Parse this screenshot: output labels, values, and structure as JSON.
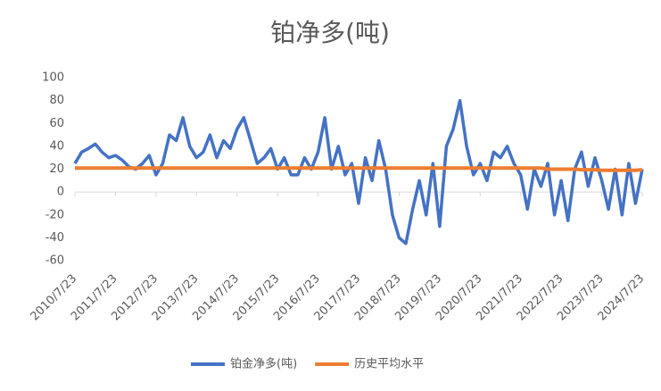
{
  "chart_data": {
    "type": "line",
    "title": "铂净多(吨)",
    "categories": [
      "2010/7/23",
      null,
      null,
      null,
      null,
      null,
      "2011/7/23",
      null,
      null,
      null,
      null,
      null,
      "2012/7/23",
      null,
      null,
      null,
      null,
      null,
      "2013/7/23",
      null,
      null,
      null,
      null,
      null,
      "2014/7/23",
      null,
      null,
      null,
      null,
      null,
      "2015/7/23",
      null,
      null,
      null,
      null,
      null,
      "2016/7/23",
      null,
      null,
      null,
      null,
      null,
      "2017/7/23",
      null,
      null,
      null,
      null,
      null,
      "2018/7/23",
      null,
      null,
      null,
      null,
      null,
      "2019/7/23",
      null,
      null,
      null,
      null,
      null,
      "2020/7/23",
      null,
      null,
      null,
      null,
      null,
      "2021/7/23",
      null,
      null,
      null,
      null,
      null,
      "2022/7/23",
      null,
      null,
      null,
      null,
      null,
      "2023/7/23",
      null,
      null,
      null,
      null,
      null,
      "2024/7/23"
    ],
    "series": [
      {
        "name": "铂金净多(吨)",
        "color": "#4472c4",
        "values": [
          25,
          35,
          38,
          42,
          35,
          30,
          32,
          28,
          22,
          20,
          25,
          32,
          15,
          25,
          50,
          45,
          65,
          40,
          30,
          35,
          50,
          30,
          45,
          38,
          55,
          65,
          45,
          25,
          30,
          38,
          20,
          30,
          15,
          15,
          30,
          20,
          35,
          65,
          20,
          40,
          15,
          25,
          -10,
          30,
          10,
          45,
          20,
          -20,
          -40,
          -45,
          -15,
          10,
          -20,
          25,
          -30,
          40,
          55,
          80,
          40,
          15,
          25,
          10,
          35,
          30,
          40,
          25,
          15,
          -15,
          20,
          5,
          25,
          -20,
          10,
          -25,
          20,
          35,
          5,
          30,
          10,
          -15,
          20,
          -20,
          25,
          -10,
          20
        ]
      },
      {
        "name": "历史平均水平",
        "color": "#ed7d31",
        "values": [
          21,
          21,
          21,
          21,
          21,
          21,
          21,
          21,
          21,
          21,
          21,
          21,
          21,
          21,
          21,
          21,
          21,
          21,
          21,
          21,
          21,
          21,
          21,
          21,
          21,
          21,
          21,
          21,
          21,
          21,
          21,
          21,
          21,
          21,
          21,
          21,
          21,
          21,
          21,
          21,
          21,
          21,
          21,
          21,
          21,
          21,
          21,
          21,
          21,
          21,
          21,
          21,
          21,
          21,
          21,
          21,
          21,
          21,
          21,
          21,
          21,
          21,
          21,
          21,
          21,
          21,
          21,
          21,
          21,
          21,
          20,
          20,
          20,
          20,
          20,
          19.5,
          19.5,
          19.5,
          19,
          19,
          19,
          19,
          19,
          19,
          19.5
        ]
      }
    ],
    "ylim": [
      -60,
      100
    ],
    "yticks": [
      -60,
      -40,
      -20,
      0,
      20,
      40,
      60,
      80,
      100
    ],
    "legend": "bottom"
  }
}
